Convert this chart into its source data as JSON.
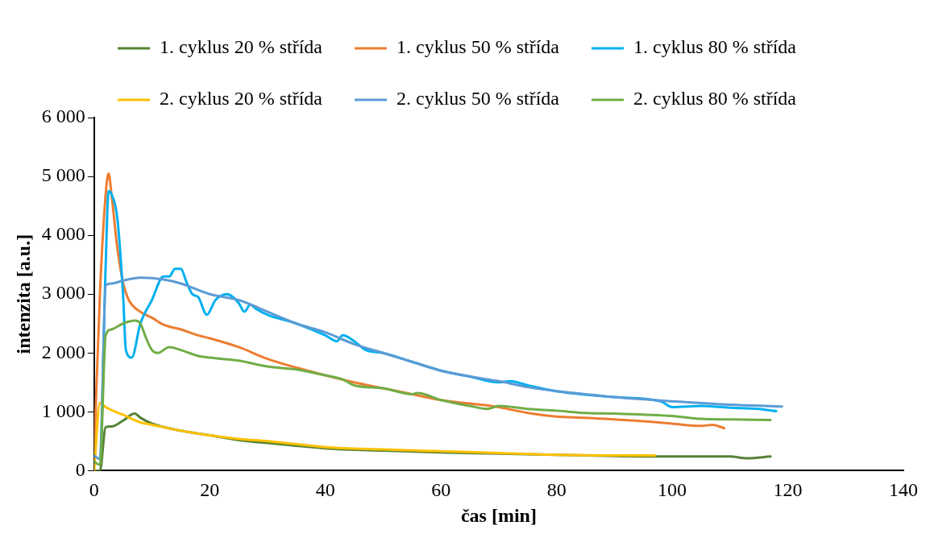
{
  "chart_data": {
    "type": "line",
    "xlabel": "čas [min]",
    "ylabel": "intenzita [a.u.]",
    "xlim": [
      0,
      140
    ],
    "xticks": [
      0,
      20,
      40,
      60,
      80,
      100,
      120,
      140
    ],
    "ylim": [
      0,
      6000
    ],
    "yticks": [
      {
        "value": 0,
        "label": "0"
      },
      {
        "value": 1000,
        "label": "1 000"
      },
      {
        "value": 2000,
        "label": "2 000"
      },
      {
        "value": 3000,
        "label": "3 000"
      },
      {
        "value": 4000,
        "label": "4 000"
      },
      {
        "value": 5000,
        "label": "5 000"
      },
      {
        "value": 6000,
        "label": "6 000"
      }
    ],
    "grid": false,
    "legend": "top",
    "marker": "none",
    "line_style": "solid",
    "series": [
      {
        "name": "1. cyklus 20 % střída",
        "color": "#548235",
        "x": [
          0,
          1,
          2,
          3,
          5,
          7,
          8,
          10,
          15,
          20,
          25,
          30,
          40,
          50,
          60,
          70,
          80,
          90,
          100,
          110,
          113,
          117
        ],
        "values": [
          0,
          0,
          740,
          750,
          850,
          970,
          900,
          800,
          680,
          600,
          520,
          470,
          380,
          340,
          310,
          290,
          270,
          250,
          240,
          240,
          210,
          240
        ]
      },
      {
        "name": "1. cyklus 50 % střída",
        "color": "#ed7d31",
        "x": [
          0,
          1,
          2,
          2.5,
          3,
          4,
          5,
          6,
          8,
          10,
          12,
          15,
          18,
          20,
          25,
          30,
          35,
          40,
          45,
          50,
          55,
          60,
          70,
          75,
          80,
          85,
          90,
          95,
          100,
          105,
          107,
          109
        ],
        "values": [
          300,
          3000,
          4700,
          5050,
          4700,
          3800,
          3200,
          2900,
          2700,
          2600,
          2480,
          2400,
          2300,
          2250,
          2100,
          1900,
          1750,
          1620,
          1500,
          1400,
          1300,
          1200,
          1080,
          980,
          920,
          900,
          870,
          840,
          800,
          760,
          780,
          720
        ]
      },
      {
        "name": "1. cyklus 80 % střída",
        "color": "#00b0f0",
        "x": [
          0,
          1,
          2,
          2.5,
          3,
          4,
          5,
          5.5,
          6.5,
          8,
          10,
          12,
          13,
          14,
          15,
          16,
          17,
          18,
          19.5,
          21,
          23,
          25,
          26,
          27,
          28,
          30,
          35,
          40,
          42,
          43,
          45,
          47,
          50,
          55,
          60,
          65,
          70,
          72,
          75,
          80,
          90,
          98,
          100,
          105,
          110,
          115,
          118
        ],
        "values": [
          250,
          200,
          3500,
          4750,
          4700,
          4300,
          3000,
          2050,
          1920,
          2500,
          2900,
          3300,
          3300,
          3430,
          3430,
          3200,
          3000,
          2950,
          2650,
          2900,
          3000,
          2850,
          2700,
          2820,
          2750,
          2650,
          2500,
          2300,
          2200,
          2300,
          2200,
          2050,
          2000,
          1850,
          1700,
          1600,
          1500,
          1520,
          1450,
          1350,
          1250,
          1180,
          1080,
          1100,
          1070,
          1050,
          1010
        ]
      },
      {
        "name": "2. cyklus 20 % střída",
        "color": "#ffc000",
        "x": [
          0,
          1,
          2,
          5,
          8,
          10,
          15,
          20,
          25,
          30,
          35,
          40,
          50,
          60,
          70,
          80,
          90,
          97
        ],
        "values": [
          0,
          1150,
          1080,
          950,
          820,
          780,
          680,
          600,
          540,
          500,
          450,
          400,
          360,
          330,
          300,
          270,
          260,
          260
        ]
      },
      {
        "name": "2. cyklus 50 % střída",
        "color": "#5b9bd5",
        "x": [
          0,
          1,
          2,
          3,
          5,
          8,
          12,
          15,
          20,
          25,
          30,
          35,
          40,
          45,
          50,
          55,
          60,
          65,
          70,
          75,
          80,
          85,
          90,
          100,
          110,
          119
        ],
        "values": [
          250,
          200,
          3150,
          3180,
          3230,
          3280,
          3250,
          3180,
          3000,
          2900,
          2700,
          2500,
          2350,
          2150,
          2000,
          1850,
          1700,
          1600,
          1520,
          1420,
          1350,
          1300,
          1250,
          1180,
          1120,
          1090
        ]
      },
      {
        "name": "2. cyklus 80 % střída",
        "color": "#70ad47",
        "x": [
          0,
          1,
          2,
          3,
          5,
          7,
          8,
          9,
          10,
          11,
          13,
          15,
          18,
          20,
          25,
          30,
          35,
          40,
          43,
          45,
          50,
          55,
          56,
          60,
          65,
          68,
          70,
          75,
          80,
          85,
          90,
          100,
          105,
          110,
          117
        ],
        "values": [
          150,
          100,
          2300,
          2400,
          2500,
          2550,
          2500,
          2250,
          2050,
          2000,
          2100,
          2050,
          1950,
          1920,
          1870,
          1770,
          1720,
          1620,
          1550,
          1450,
          1400,
          1300,
          1320,
          1200,
          1100,
          1050,
          1100,
          1050,
          1020,
          980,
          970,
          930,
          880,
          870,
          860
        ]
      }
    ]
  }
}
